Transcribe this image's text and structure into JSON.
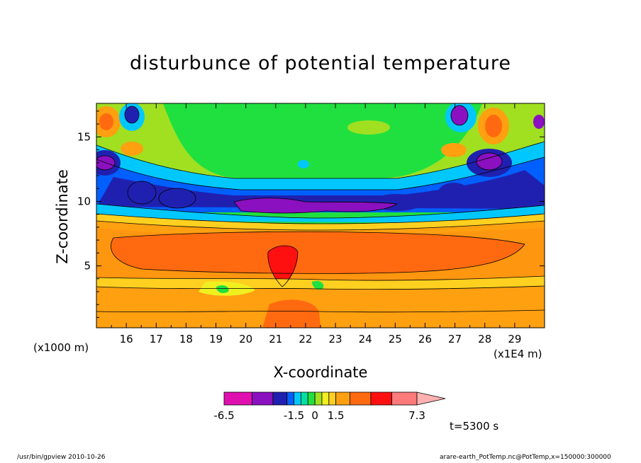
{
  "chart_data": {
    "type": "heatmap",
    "title": "disturbunce of potential temperature",
    "xlabel": "X-coordinate",
    "ylabel": "Z-coordinate",
    "x_unit": "(x1E4 m)",
    "y_unit": "(x1000 m)",
    "xlim": [
      15,
      30
    ],
    "ylim": [
      0.2,
      17.6
    ],
    "x_ticks": [
      16,
      17,
      18,
      19,
      20,
      21,
      22,
      23,
      24,
      25,
      26,
      27,
      28,
      29
    ],
    "y_ticks": [
      5,
      10,
      15
    ],
    "colorbar": {
      "levels": [
        -6.5,
        -4.5,
        -3.0,
        -2.0,
        -1.5,
        -1.0,
        -0.5,
        0,
        0.5,
        1.0,
        1.5,
        2.5,
        4.0,
        5.5,
        7.3
      ],
      "colors": [
        "#e010b0",
        "#8a10c0",
        "#2020b0",
        "#0060ff",
        "#00c8ff",
        "#00e0a0",
        "#20e040",
        "#a0e020",
        "#f0f020",
        "#ffd020",
        "#ffa010",
        "#ff6a10",
        "#ff1010",
        "#ff7a7a"
      ],
      "extend_color": "#ffb0b0",
      "labels": [
        "-6.5",
        "-1.5",
        "0",
        "1.5",
        "7.3"
      ]
    },
    "time_label": "t=5300 s",
    "grid": false
  },
  "footer": {
    "left": "/usr/bin/gpview  2010-10-26",
    "right": "arare-earth_PotTemp.nc@PotTemp,x=150000:300000"
  }
}
